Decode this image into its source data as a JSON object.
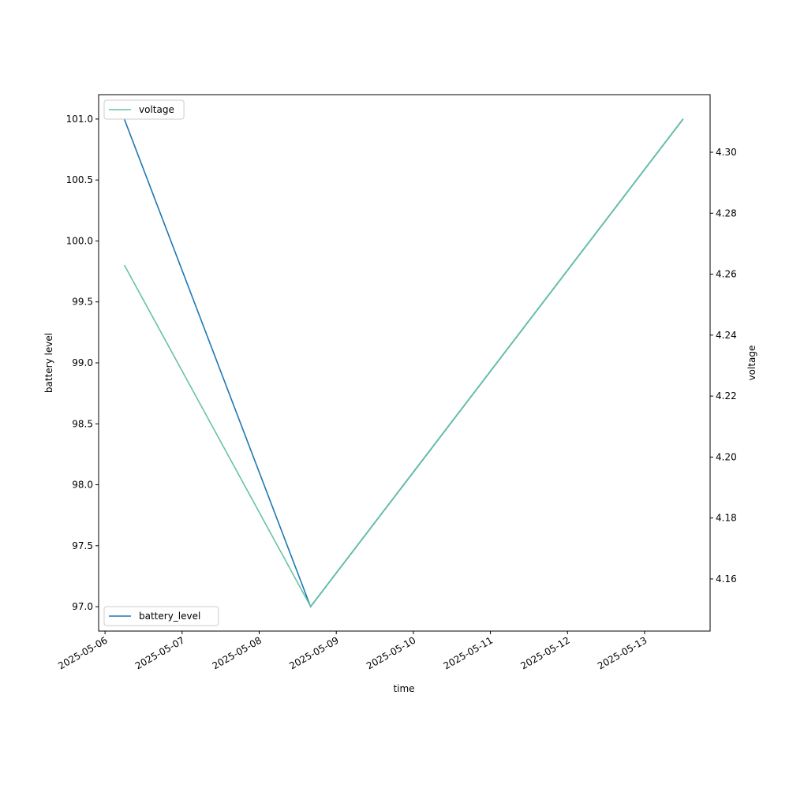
{
  "chart_data": {
    "type": "line",
    "x_label": "time",
    "y_label": "battery level",
    "y2_label": "voltage",
    "x": [
      "2025-05-06T06:00",
      "2025-05-08T16:00",
      "2025-05-13T12:00"
    ],
    "xlim": [
      "2025-05-05T22:00",
      "2025-05-13T20:24"
    ],
    "xticks": [
      {
        "value": "2025-05-06T00:00",
        "label": "2025-05-06"
      },
      {
        "value": "2025-05-07T00:00",
        "label": "2025-05-07"
      },
      {
        "value": "2025-05-08T00:00",
        "label": "2025-05-08"
      },
      {
        "value": "2025-05-09T00:00",
        "label": "2025-05-09"
      },
      {
        "value": "2025-05-10T00:00",
        "label": "2025-05-10"
      },
      {
        "value": "2025-05-11T00:00",
        "label": "2025-05-11"
      },
      {
        "value": "2025-05-12T00:00",
        "label": "2025-05-12"
      },
      {
        "value": "2025-05-13T00:00",
        "label": "2025-05-13"
      }
    ],
    "ylim": [
      96.8,
      101.2
    ],
    "yticks": [
      {
        "value": 97,
        "label": "97.0"
      },
      97.5,
      {
        "value": 98,
        "label": "98.0"
      },
      98.5,
      {
        "value": 99,
        "label": "99.0"
      },
      99.5,
      {
        "value": 100,
        "label": "100.0"
      },
      100.5,
      {
        "value": 101,
        "label": "101.0"
      }
    ],
    "y2lim": [
      4.1429,
      4.3189
    ],
    "y2ticks": [
      4.16,
      4.18,
      {
        "value": 4.2,
        "label": "4.20"
      },
      4.22,
      4.24,
      4.26,
      4.28,
      {
        "value": 4.3,
        "label": "4.30"
      }
    ],
    "series": [
      {
        "name": "battery_level",
        "color": "#1f77b4",
        "values": [
          101,
          97,
          101
        ],
        "legend_loc": "lower left"
      },
      {
        "name": "voltage",
        "color": "#66c2a5",
        "values": [
          4.263,
          4.151,
          4.311
        ],
        "axis": "y2",
        "legend_loc": "upper left"
      }
    ]
  }
}
